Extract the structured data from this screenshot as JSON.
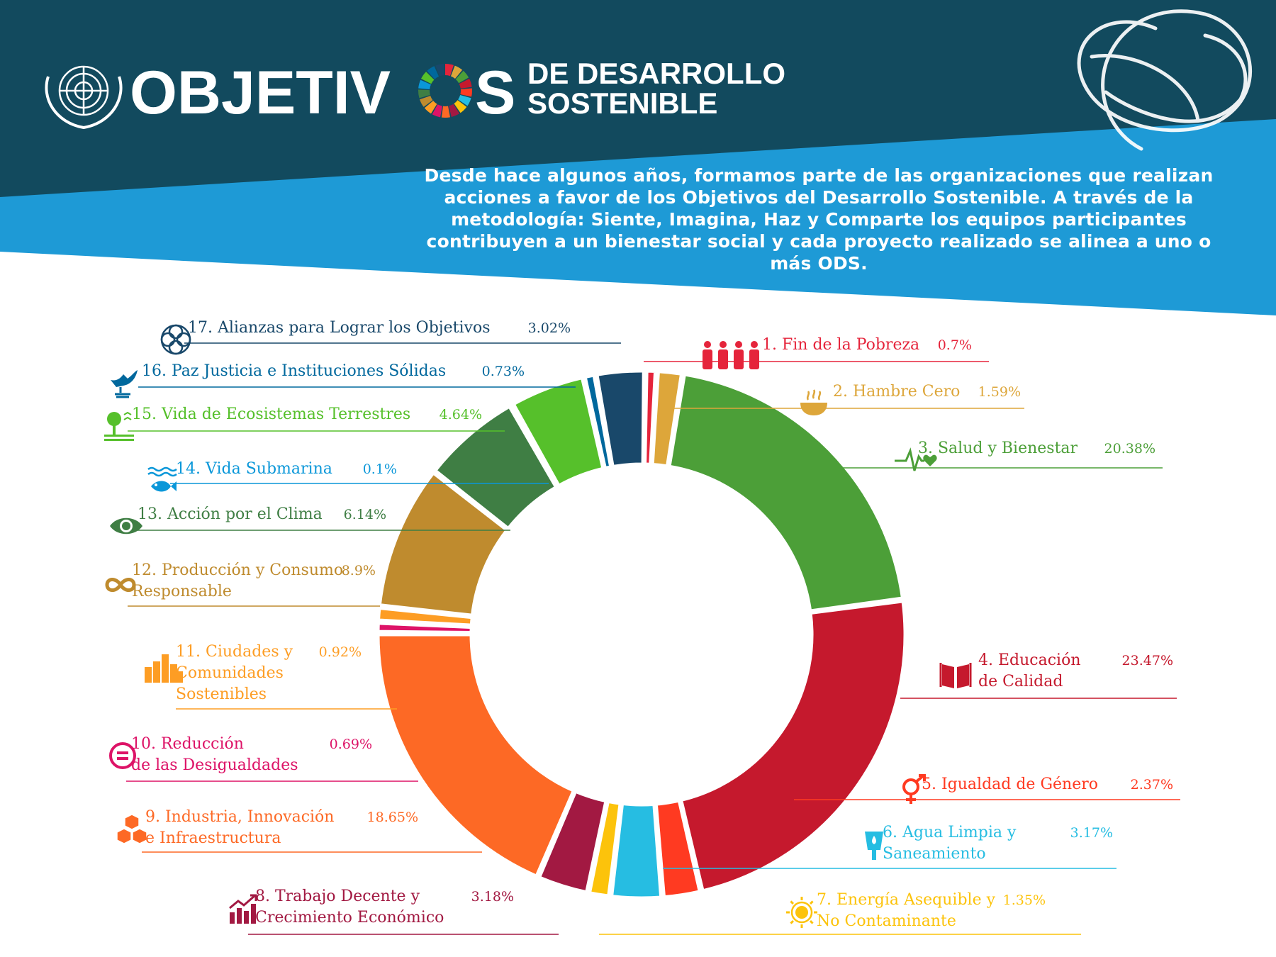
{
  "header": {
    "title_left": "OBJETIV",
    "title_right": "S",
    "subtitle_line1": "DE DESARROLLO",
    "subtitle_line2": "SOSTENIBLE",
    "intro_text": "Desde hace algunos años, formamos parte de las organizaciones que realizan acciones a favor de los Objetivos del Desarrollo Sostenible. A través de la metodología: Siente, Imagina, Haz y Comparte los equipos participantes contribuyen a un bienestar social y cada proyecto realizado se alinea a uno o más ODS.",
    "colors": {
      "dark": "#124a5e",
      "light": "#1e9ad6"
    }
  },
  "chart_data": {
    "type": "pie",
    "donut": true,
    "slices": [
      {
        "label": "1. Fin de la Pobreza",
        "value": 0.7,
        "value_label": "0.7%",
        "color": "#e5243b",
        "icon": "family-icon"
      },
      {
        "label": "2. Hambre Cero",
        "value": 1.59,
        "value_label": "1.59%",
        "color": "#dda63a",
        "icon": "bowl-icon"
      },
      {
        "label": "3. Salud y Bienestar",
        "value": 20.38,
        "value_label": "20.38%",
        "color": "#4c9f38",
        "icon": "heartbeat-icon"
      },
      {
        "label": "4. Educación\nde Calidad",
        "value": 23.47,
        "value_label": "23.47%",
        "color": "#c5192d",
        "icon": "book-icon"
      },
      {
        "label": "5. Igualdad de Género",
        "value": 2.37,
        "value_label": "2.37%",
        "color": "#ff3a21",
        "icon": "gender-icon"
      },
      {
        "label": "6. Agua Limpia y\nSaneamiento",
        "value": 3.17,
        "value_label": "3.17%",
        "color": "#26bde2",
        "icon": "water-icon"
      },
      {
        "label": "7. Energía Asequible y\nNo Contaminante",
        "value": 1.35,
        "value_label": "1.35%",
        "color": "#fcc30b",
        "icon": "sun-icon"
      },
      {
        "label": "8. Trabajo Decente y\nCrecimiento Económico",
        "value": 3.18,
        "value_label": "3.18%",
        "color": "#a21942",
        "icon": "growth-icon"
      },
      {
        "label": "9. Industria, Innovación\ne Infraestructura",
        "value": 18.65,
        "value_label": "18.65%",
        "color": "#fd6925",
        "icon": "cubes-icon"
      },
      {
        "label": "10. Reducción\nde las Desigualdades",
        "value": 0.69,
        "value_label": "0.69%",
        "color": "#dd1367",
        "icon": "equal-icon"
      },
      {
        "label": "11. Ciudades y\nComunidades\nSostenibles",
        "value": 0.92,
        "value_label": "0.92%",
        "color": "#fd9d24",
        "icon": "city-icon"
      },
      {
        "label": "12. Producción y Consumo\nResponsable",
        "value": 8.9,
        "value_label": "8.9%",
        "color": "#bf8b2e",
        "icon": "infinity-icon"
      },
      {
        "label": "13. Acción por el Clima",
        "value": 6.14,
        "value_label": "6.14%",
        "color": "#3f7e44",
        "icon": "eye-globe-icon"
      },
      {
        "label": "14. Vida Submarina",
        "value": 0.1,
        "value_label": "0.1%",
        "color": "#0a97d9",
        "icon": "fish-icon"
      },
      {
        "label": "15. Vida de Ecosistemas Terrestres",
        "value": 4.64,
        "value_label": "4.64%",
        "color": "#56c02b",
        "icon": "tree-icon"
      },
      {
        "label": "16. Paz Justicia e Instituciones Sólidas",
        "value": 0.73,
        "value_label": "0.73%",
        "color": "#00689d",
        "icon": "dove-icon"
      },
      {
        "label": "17. Alianzas para Lograr los Objetivos",
        "value": 3.02,
        "value_label": "3.02%",
        "color": "#19486a",
        "icon": "flower-icon"
      }
    ]
  }
}
